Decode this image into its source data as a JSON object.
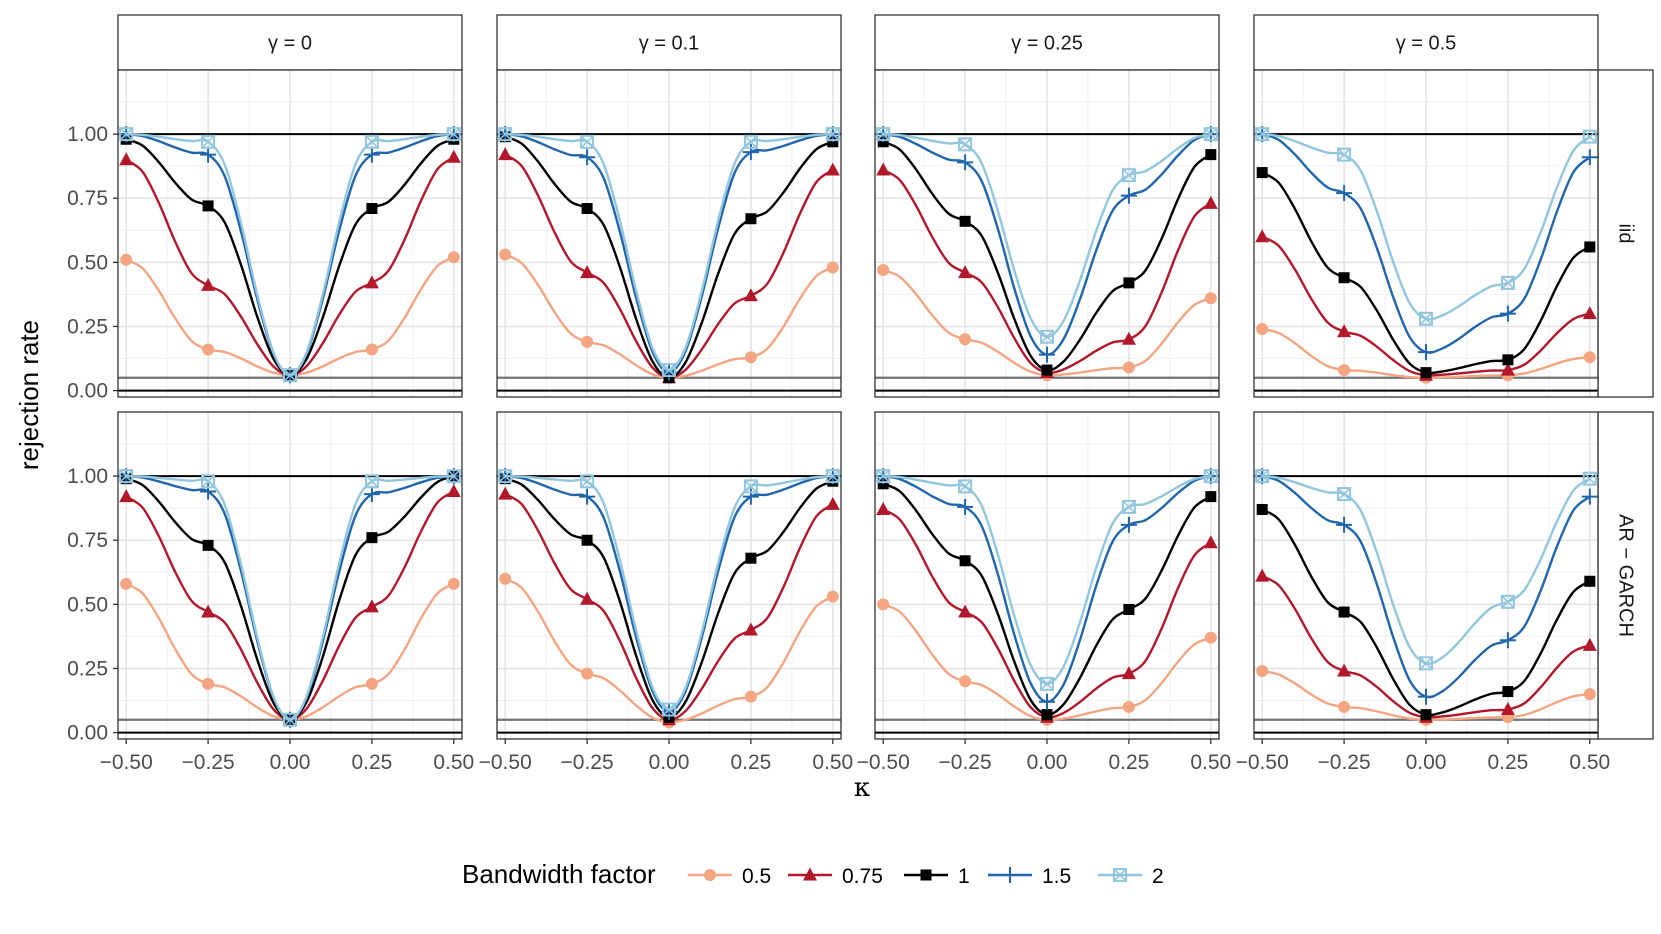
{
  "chart_data": {
    "type": "line",
    "xlabel": "κ",
    "ylabel": "rejection rate",
    "x_ticks": [
      "−0.50",
      "−0.25",
      "0.00",
      "0.25",
      "0.50"
    ],
    "y_ticks": [
      "0.00",
      "0.25",
      "0.50",
      "0.75",
      "1.00"
    ],
    "xlim": [
      -0.525,
      0.525
    ],
    "ylim": [
      -0.025,
      1.25
    ],
    "reference_lines": [
      0,
      0.05,
      1
    ],
    "column_labels": [
      "γ = 0",
      "γ = 0.1",
      "γ = 0.25",
      "γ = 0.5"
    ],
    "row_labels": [
      "iid",
      "AR − GARCH"
    ],
    "legend": {
      "title": "Bandwidth factor",
      "entries": [
        {
          "label": "0.5",
          "color": "#f4a582",
          "shape": "circle"
        },
        {
          "label": "0.75",
          "color": "#b2182b",
          "shape": "triangle"
        },
        {
          "label": "1",
          "color": "#000000",
          "shape": "square"
        },
        {
          "label": "1.5",
          "color": "#2166ac",
          "shape": "plus"
        },
        {
          "label": "2",
          "color": "#92c5de",
          "shape": "square-cross"
        }
      ]
    },
    "x_markers": [
      -0.5,
      -0.25,
      0,
      0.25,
      0.5
    ],
    "panels": [
      {
        "row": 0,
        "col": 0,
        "gamma": 0,
        "bw": {
          "0.5": [
            0.51,
            0.16,
            0.06,
            0.16,
            0.52
          ],
          "0.75": [
            0.9,
            0.41,
            0.06,
            0.42,
            0.91
          ],
          "1": [
            0.98,
            0.72,
            0.06,
            0.71,
            0.98
          ],
          "1.5": [
            1.0,
            0.92,
            0.06,
            0.92,
            1.0
          ],
          "2": [
            1.0,
            0.97,
            0.06,
            0.97,
            1.0
          ]
        }
      },
      {
        "row": 0,
        "col": 1,
        "gamma": 0.1,
        "bw": {
          "0.5": [
            0.53,
            0.19,
            0.05,
            0.13,
            0.48
          ],
          "0.75": [
            0.92,
            0.46,
            0.05,
            0.37,
            0.86
          ],
          "1": [
            0.99,
            0.71,
            0.05,
            0.67,
            0.97
          ],
          "1.5": [
            1.0,
            0.91,
            0.07,
            0.93,
            1.0
          ],
          "2": [
            1.0,
            0.97,
            0.08,
            0.97,
            1.0
          ]
        }
      },
      {
        "row": 0,
        "col": 2,
        "gamma": 0.25,
        "bw": {
          "0.5": [
            0.47,
            0.2,
            0.06,
            0.09,
            0.36
          ],
          "0.75": [
            0.86,
            0.46,
            0.07,
            0.2,
            0.73
          ],
          "1": [
            0.97,
            0.66,
            0.08,
            0.42,
            0.92
          ],
          "1.5": [
            1.0,
            0.89,
            0.14,
            0.76,
            1.0
          ],
          "2": [
            1.0,
            0.96,
            0.21,
            0.84,
            1.0
          ]
        }
      },
      {
        "row": 0,
        "col": 3,
        "gamma": 0.5,
        "bw": {
          "0.5": [
            0.24,
            0.08,
            0.05,
            0.06,
            0.13
          ],
          "0.75": [
            0.6,
            0.23,
            0.06,
            0.08,
            0.3
          ],
          "1": [
            0.85,
            0.44,
            0.07,
            0.12,
            0.56
          ],
          "1.5": [
            1.0,
            0.77,
            0.15,
            0.3,
            0.91
          ],
          "2": [
            1.0,
            0.92,
            0.28,
            0.42,
            0.99
          ]
        }
      },
      {
        "row": 1,
        "col": 0,
        "gamma": 0,
        "bw": {
          "0.5": [
            0.58,
            0.19,
            0.05,
            0.19,
            0.58
          ],
          "0.75": [
            0.92,
            0.47,
            0.05,
            0.49,
            0.94
          ],
          "1": [
            0.99,
            0.73,
            0.05,
            0.76,
            1.0
          ],
          "1.5": [
            1.0,
            0.94,
            0.05,
            0.93,
            1.0
          ],
          "2": [
            1.0,
            0.98,
            0.05,
            0.98,
            1.0
          ]
        }
      },
      {
        "row": 1,
        "col": 1,
        "gamma": 0.1,
        "bw": {
          "0.5": [
            0.6,
            0.23,
            0.04,
            0.14,
            0.53
          ],
          "0.75": [
            0.93,
            0.52,
            0.05,
            0.4,
            0.89
          ],
          "1": [
            0.99,
            0.75,
            0.06,
            0.68,
            0.98
          ],
          "1.5": [
            1.0,
            0.92,
            0.08,
            0.92,
            1.0
          ],
          "2": [
            1.0,
            0.98,
            0.09,
            0.96,
            1.0
          ]
        }
      },
      {
        "row": 1,
        "col": 2,
        "gamma": 0.25,
        "bw": {
          "0.5": [
            0.5,
            0.2,
            0.05,
            0.1,
            0.37
          ],
          "0.75": [
            0.87,
            0.47,
            0.06,
            0.23,
            0.74
          ],
          "1": [
            0.97,
            0.67,
            0.07,
            0.48,
            0.92
          ],
          "1.5": [
            1.0,
            0.88,
            0.12,
            0.81,
            1.0
          ],
          "2": [
            1.0,
            0.96,
            0.19,
            0.88,
            1.0
          ]
        }
      },
      {
        "row": 1,
        "col": 3,
        "gamma": 0.5,
        "bw": {
          "0.5": [
            0.24,
            0.1,
            0.05,
            0.06,
            0.15
          ],
          "0.75": [
            0.61,
            0.24,
            0.06,
            0.09,
            0.34
          ],
          "1": [
            0.87,
            0.47,
            0.07,
            0.16,
            0.59
          ],
          "1.5": [
            1.0,
            0.81,
            0.14,
            0.36,
            0.92
          ],
          "2": [
            1.0,
            0.93,
            0.27,
            0.51,
            0.99
          ]
        }
      }
    ]
  }
}
